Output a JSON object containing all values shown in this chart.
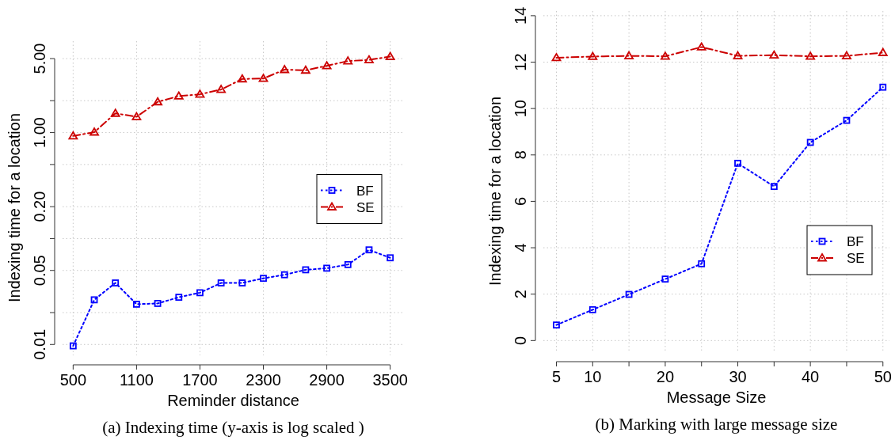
{
  "chart_data": [
    {
      "type": "line",
      "xlabel": "Reminder distance",
      "ylabel": "Indexing time for a location",
      "annotations": [
        "(a) Indexing time (y-axis is log scaled )"
      ],
      "log": "y",
      "grid": true,
      "legend": "right",
      "x": [
        500,
        700,
        900,
        1100,
        1300,
        1500,
        1700,
        1900,
        2100,
        2300,
        2500,
        2700,
        2900,
        3100,
        3300,
        3500
      ],
      "xlim": [
        400,
        3630
      ],
      "xticks": [
        500,
        1100,
        1700,
        2300,
        2900,
        3500
      ],
      "ylim": [
        0.0079,
        7.3
      ],
      "yticks": [
        0.01,
        {
          "value": 0.02,
          "label": null
        },
        0.05,
        {
          "value": 0.1,
          "label": null
        },
        "0.20",
        {
          "value": 0.5,
          "label": null
        },
        {
          "value": 1,
          "label": "1.00"
        },
        {
          "value": 2,
          "label": null
        },
        {
          "value": 5,
          "label": "5.00"
        }
      ],
      "series": [
        {
          "name": "BF",
          "color": "#0000ff",
          "marker": "square",
          "line_style": "dotted",
          "values": [
            0.0097,
            0.0264,
            0.0381,
            0.024,
            0.0244,
            0.0279,
            0.0308,
            0.0381,
            0.0381,
            0.0421,
            0.0455,
            0.0507,
            0.0525,
            0.0568,
            0.0782,
            0.0658
          ]
        },
        {
          "name": "SE",
          "color": "#cc0000",
          "marker": "triangle",
          "line_style": "dashed",
          "values": [
            0.93,
            1.01,
            1.52,
            1.41,
            1.95,
            2.21,
            2.3,
            2.55,
            3.21,
            3.24,
            3.93,
            3.88,
            4.27,
            4.74,
            4.86,
            5.22
          ]
        }
      ]
    },
    {
      "type": "line",
      "xlabel": "Message Size",
      "ylabel": "Indexing time for a location",
      "annotations": [
        "(b) Marking with large message size"
      ],
      "grid": true,
      "legend": "bottom right",
      "x": [
        5,
        10,
        15,
        20,
        25,
        30,
        35,
        40,
        45,
        50
      ],
      "xlim": [
        3.2,
        50.9
      ],
      "xticks": [
        5,
        10,
        {
          "value": 15,
          "label": null
        },
        20,
        {
          "value": 25,
          "label": null
        },
        30,
        {
          "value": 35,
          "label": null
        },
        40,
        {
          "value": 45,
          "label": null
        },
        50
      ],
      "ylim": [
        -0.5,
        14.2
      ],
      "yticks": [
        0,
        2,
        4,
        6,
        8,
        10,
        12,
        14
      ],
      "series": [
        {
          "name": "BF",
          "color": "#0000ff",
          "marker": "square",
          "line_style": "dotted",
          "values": [
            0.67,
            1.33,
            1.99,
            2.65,
            3.31,
            7.64,
            6.64,
            8.54,
            9.49,
            10.92
          ]
        },
        {
          "name": "SE",
          "color": "#cc0000",
          "marker": "triangle",
          "line_style": "dashed",
          "values": [
            12.19,
            12.24,
            12.27,
            12.25,
            12.65,
            12.27,
            12.3,
            12.25,
            12.27,
            12.41
          ]
        }
      ]
    }
  ]
}
